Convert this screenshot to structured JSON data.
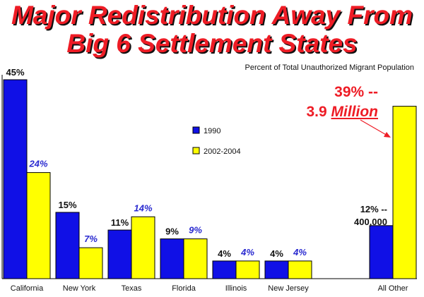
{
  "title_line1": "Major Redistribution Away From",
  "title_line2": "Big 6 Settlement States",
  "subtitle": "Percent of Total Unauthorized Migrant Population",
  "callout": {
    "line1": "39% --",
    "line2_prefix": "3.9 ",
    "line2_em": "Million"
  },
  "annotation": {
    "line1": "12% --",
    "line2": "400,000"
  },
  "colors": {
    "series1990": "#1010e6",
    "series2002": "#ffff00",
    "title": "#ee1c25",
    "label2002": "#2a2ad0"
  },
  "chart_data": {
    "type": "bar",
    "categories": [
      "California",
      "New York",
      "Texas",
      "Florida",
      "Illinois",
      "New Jersey",
      "All Other"
    ],
    "series": [
      {
        "name": "1990",
        "values": [
          45,
          15,
          11,
          9,
          4,
          4,
          12
        ],
        "labels": [
          "45%",
          "15%",
          "11%",
          "9%",
          "4%",
          "4%",
          ""
        ]
      },
      {
        "name": "2002-2004",
        "values": [
          24,
          7,
          14,
          9,
          4,
          4,
          39
        ],
        "labels": [
          "24%",
          "7%",
          "14%",
          "9%",
          "4%",
          "4%",
          ""
        ]
      }
    ],
    "ylim": [
      0,
      45
    ],
    "legend": "center"
  }
}
